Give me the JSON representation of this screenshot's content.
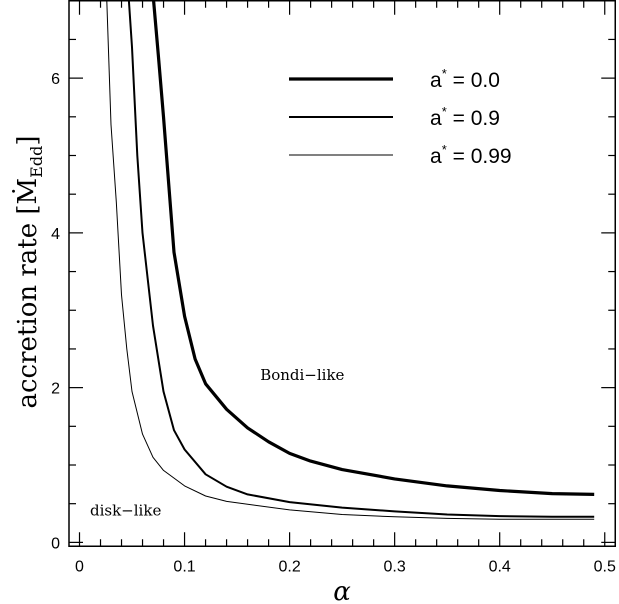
{
  "chart_data": {
    "type": "line",
    "xlabel": "α",
    "ylabel_main": "accretion rate",
    "ylabel_unit_symbol": "Ṁ",
    "ylabel_unit_subscript": "Edd",
    "xlim": [
      -0.01,
      0.51
    ],
    "ylim": [
      -0.05,
      7.0
    ],
    "x_ticks": [
      "0",
      "0.1",
      "0.2",
      "0.3",
      "0.4",
      "0.5"
    ],
    "y_ticks": [
      "0",
      "2",
      "4",
      "6"
    ],
    "series": [
      {
        "name": "a* = 0.0",
        "legend_param": "a",
        "legend_value": "0.0",
        "x": [
          0.0705,
          0.075,
          0.08,
          0.09,
          0.1,
          0.11,
          0.12,
          0.14,
          0.16,
          0.18,
          0.2,
          0.22,
          0.25,
          0.3,
          0.35,
          0.4,
          0.45,
          0.49
        ],
        "y": [
          7.0,
          6.3,
          5.5,
          3.75,
          2.92,
          2.37,
          2.05,
          1.72,
          1.48,
          1.3,
          1.15,
          1.05,
          0.94,
          0.82,
          0.73,
          0.67,
          0.63,
          0.62
        ]
      },
      {
        "name": "a* = 0.9",
        "legend_param": "a",
        "legend_value": "0.9",
        "x": [
          0.047,
          0.05,
          0.055,
          0.06,
          0.07,
          0.08,
          0.09,
          0.1,
          0.12,
          0.14,
          0.16,
          0.2,
          0.25,
          0.3,
          0.35,
          0.4,
          0.45,
          0.49
        ],
        "y": [
          7.0,
          6.4,
          5.0,
          4.0,
          2.8,
          1.95,
          1.45,
          1.2,
          0.88,
          0.72,
          0.62,
          0.52,
          0.45,
          0.4,
          0.36,
          0.34,
          0.33,
          0.33
        ]
      },
      {
        "name": "a* = 0.99",
        "legend_param": "a",
        "legend_value": "0.99",
        "x": [
          0.026,
          0.03,
          0.035,
          0.04,
          0.045,
          0.05,
          0.06,
          0.07,
          0.08,
          0.1,
          0.12,
          0.14,
          0.2,
          0.25,
          0.3,
          0.35,
          0.4,
          0.45,
          0.49
        ],
        "y": [
          7.0,
          5.4,
          4.4,
          3.2,
          2.5,
          1.95,
          1.4,
          1.1,
          0.93,
          0.73,
          0.6,
          0.53,
          0.42,
          0.36,
          0.33,
          0.31,
          0.3,
          0.3,
          0.3
        ]
      }
    ],
    "annotations": [
      {
        "text": "Bondi−like",
        "x": 0.172,
        "y": 2.1
      },
      {
        "text": "disk−like",
        "x": 0.01,
        "y": 0.35
      }
    ],
    "legend_location": "top-right",
    "grid": false
  }
}
